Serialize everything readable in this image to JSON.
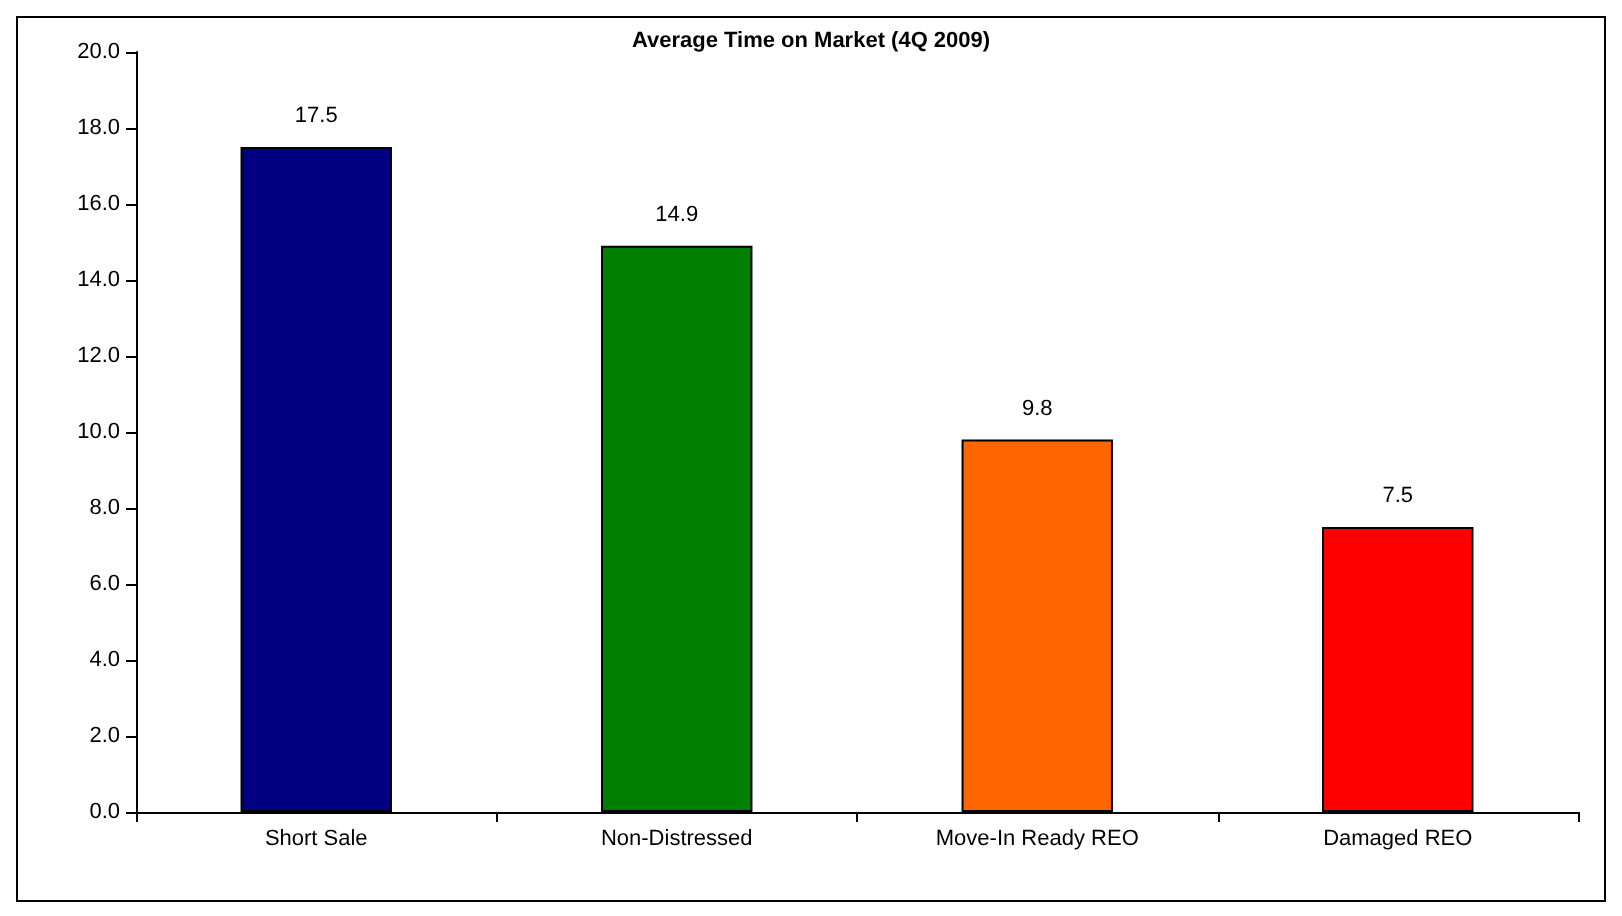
{
  "chart_data": {
    "type": "bar",
    "title": "Average Time on Market (4Q 2009)",
    "categories": [
      "Short Sale",
      "Non-Distressed",
      "Move-In Ready REO",
      "Damaged REO"
    ],
    "values": [
      17.5,
      14.9,
      9.8,
      7.5
    ],
    "colors": [
      "#000080",
      "#008000",
      "#ff6600",
      "#ff0000"
    ],
    "ylim": [
      0,
      20
    ],
    "yticks": [
      {
        "value": 0,
        "label": "0.0"
      },
      {
        "value": 2,
        "label": "2.0"
      },
      {
        "value": 4,
        "label": "4.0"
      },
      {
        "value": 6,
        "label": "6.0"
      },
      {
        "value": 8,
        "label": "8.0"
      },
      {
        "value": 10,
        "label": "10.0"
      },
      {
        "value": 12,
        "label": "12.0"
      },
      {
        "value": 14,
        "label": "14.0"
      },
      {
        "value": 16,
        "label": "16.0"
      },
      {
        "value": 18,
        "label": "18.0"
      },
      {
        "value": 20,
        "label": "20.0"
      }
    ],
    "data_labels": true
  }
}
